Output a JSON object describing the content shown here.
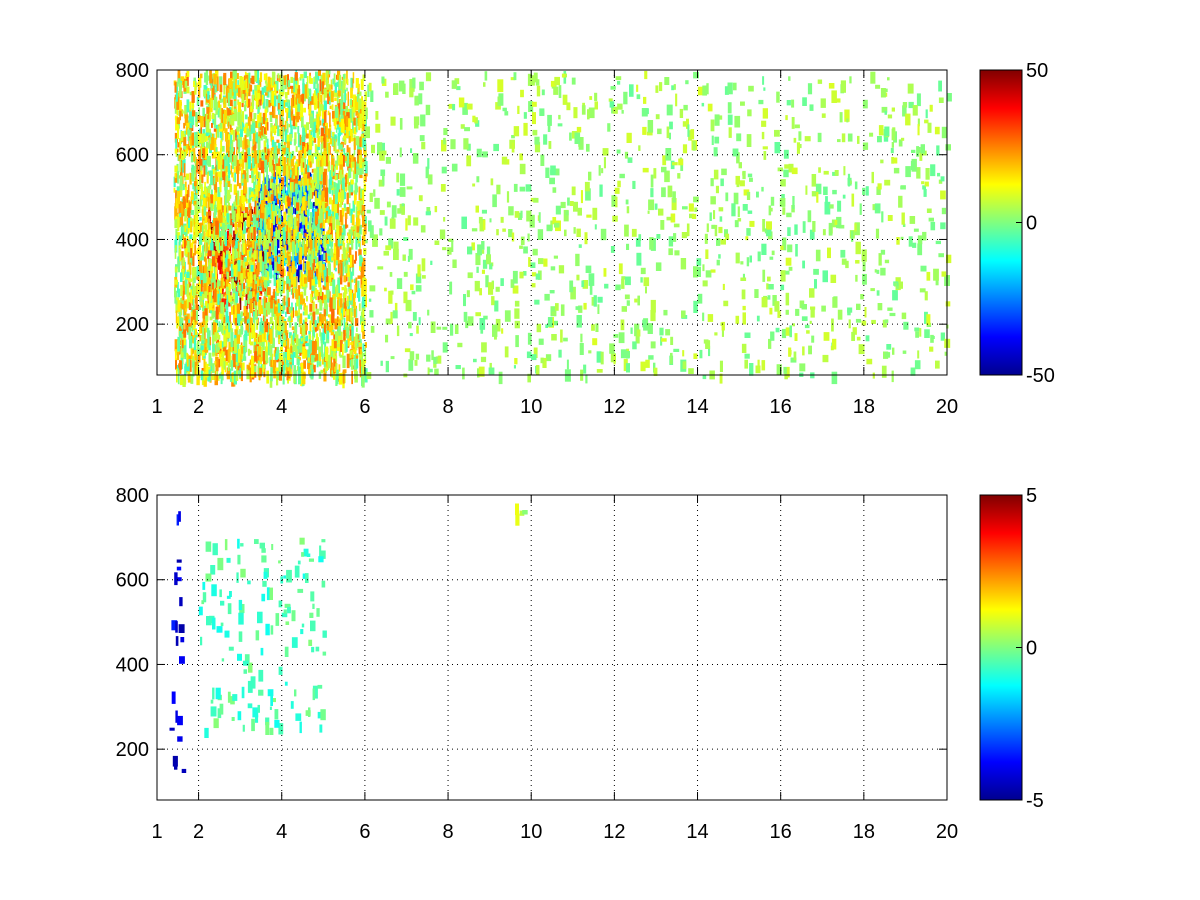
{
  "chart_data": [
    {
      "type": "heatmap",
      "title": "",
      "xlabel": "",
      "ylabel": "",
      "xlim": [
        1,
        20
      ],
      "ylim": [
        80,
        800
      ],
      "xticks": [
        1,
        2,
        4,
        6,
        8,
        10,
        12,
        14,
        16,
        18,
        20
      ],
      "xtick_labels": [
        "1",
        "2",
        "4",
        "6",
        "8",
        "10",
        "12",
        "14",
        "16",
        "18",
        "20"
      ],
      "yticks": [
        200,
        400,
        600,
        800
      ],
      "ytick_labels": [
        "200",
        "400",
        "600",
        "800"
      ],
      "grid": true,
      "colormap": "jet",
      "clim": [
        -50,
        50
      ],
      "colorbar_ticks": [
        -50,
        0,
        50
      ],
      "colorbar_tick_labels": [
        "-50",
        "0",
        "50"
      ],
      "regions": [
        {
          "x": [
            2.2,
            3.6
          ],
          "y": [
            260,
            480
          ],
          "value": 35,
          "description": "dense warm patch"
        },
        {
          "x": [
            3.4,
            5.0
          ],
          "y": [
            320,
            560
          ],
          "value": -30,
          "description": "dense cool patch"
        },
        {
          "x": [
            1.4,
            6.0
          ],
          "y": [
            80,
            800
          ],
          "value": 10,
          "description": "dense mixed fill"
        },
        {
          "x": [
            6.0,
            20.0
          ],
          "y": [
            80,
            800
          ],
          "value": 3,
          "description": "sparse near-zero speckle"
        }
      ]
    },
    {
      "type": "heatmap",
      "title": "",
      "xlabel": "",
      "ylabel": "",
      "xlim": [
        1,
        20
      ],
      "ylim": [
        80,
        800
      ],
      "xticks": [
        1,
        2,
        4,
        6,
        8,
        10,
        12,
        14,
        16,
        18,
        20
      ],
      "xtick_labels": [
        "1",
        "2",
        "4",
        "6",
        "8",
        "10",
        "12",
        "14",
        "16",
        "18",
        "20"
      ],
      "yticks": [
        200,
        400,
        600,
        800
      ],
      "ytick_labels": [
        "200",
        "400",
        "600",
        "800"
      ],
      "grid": true,
      "colormap": "jet",
      "clim": [
        -5,
        5
      ],
      "colorbar_ticks": [
        -5,
        0,
        5
      ],
      "colorbar_tick_labels": [
        "-5",
        "0",
        "5"
      ],
      "regions": [
        {
          "x": [
            2.0,
            5.0
          ],
          "y": [
            250,
            700
          ],
          "value": -0.5,
          "description": "scattered near-zero values"
        },
        {
          "x": [
            1.3,
            1.6
          ],
          "y": [
            150,
            780
          ],
          "value": -4,
          "description": "sparse vertical strokes"
        },
        {
          "x": [
            9.6,
            9.8
          ],
          "y": [
            750,
            800
          ],
          "value": 0.5,
          "description": "isolated small cluster"
        }
      ]
    }
  ]
}
